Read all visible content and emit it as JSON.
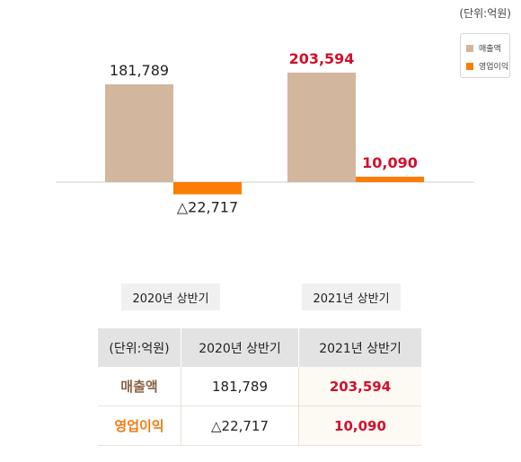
{
  "unit_label": "(단위:억원)",
  "colors": {
    "sales": "#d2b69e",
    "operating_profit": "#fb7d04",
    "highlight_text": "#d0102d",
    "sales_label": "#8a6346",
    "profit_label": "#f07c12"
  },
  "chart_data": {
    "type": "bar",
    "categories": [
      "2020년 상반기",
      "2021년 상반기"
    ],
    "series": [
      {
        "name": "매출액",
        "values": [
          181789,
          203594
        ],
        "labels": [
          "181,789",
          "203,594"
        ]
      },
      {
        "name": "영업이익",
        "values": [
          -22717,
          10090
        ],
        "labels": [
          "△22,717",
          "10,090"
        ]
      }
    ],
    "legend_position": "top-right",
    "grid": false
  },
  "table": {
    "header": [
      "(단위:억원)",
      "2020년 상반기",
      "2021년 상반기"
    ],
    "rows": [
      {
        "label": "매출액",
        "v2020": "181,789",
        "v2021": "203,594"
      },
      {
        "label": "영업이익",
        "v2020": "△22,717",
        "v2021": "10,090"
      }
    ]
  }
}
